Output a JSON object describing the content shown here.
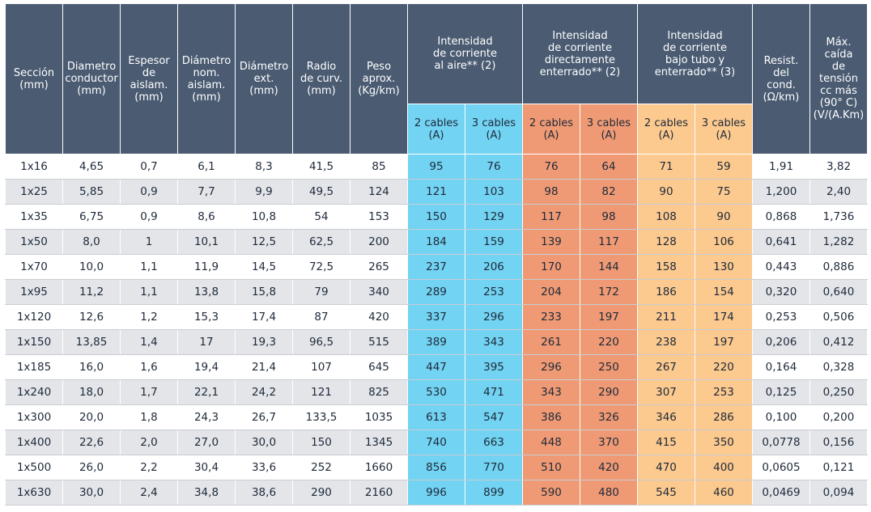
{
  "headers": {
    "seccion": "Sección\n(mm)",
    "diametro_conductor": "Diametro\nconductor\n(mm)",
    "espesor": "Espesor\nde\naislam.\n(mm)",
    "diametro_nom": "Diámetro\nnom.\naislam.\n(mm)",
    "diametro_ext": "Diámetro\next.\n(mm)",
    "radio": "Radio\nde curv.\n(mm)",
    "peso": "Peso\naprox.\n(Kg/km)",
    "int_aire": "Intensidad\nde corriente\nal aire** (2)",
    "int_enterrado": "Intensidad\nde corriente\ndirectamente\nenterrado** (2)",
    "int_tubo": "Intensidad\nde corriente\nbajo tubo y\nenterrado** (3)",
    "resist": "Resist.\ndel\ncond.\n(Ω/km)",
    "max_caida": "Máx.\ncaída\nde\ntensión\ncc más\n(90° C)\n(V/(A.Km)",
    "sub_2": "2 cables\n(A)",
    "sub_3": "3 cables\n(A)"
  },
  "rows": [
    [
      "1x16",
      "4,65",
      "0,7",
      "6,1",
      "8,3",
      "41,5",
      "85",
      "95",
      "76",
      "76",
      "64",
      "71",
      "59",
      "1,91",
      "3,82"
    ],
    [
      "1x25",
      "5,85",
      "0,9",
      "7,7",
      "9,9",
      "49,5",
      "124",
      "121",
      "103",
      "98",
      "82",
      "90",
      "75",
      "1,200",
      "2,40"
    ],
    [
      "1x35",
      "6,75",
      "0,9",
      "8,6",
      "10,8",
      "54",
      "153",
      "150",
      "129",
      "117",
      "98",
      "108",
      "90",
      "0,868",
      "1,736"
    ],
    [
      "1x50",
      "8,0",
      "1",
      "10,1",
      "12,5",
      "62,5",
      "200",
      "184",
      "159",
      "139",
      "117",
      "128",
      "106",
      "0,641",
      "1,282"
    ],
    [
      "1x70",
      "10,0",
      "1,1",
      "11,9",
      "14,5",
      "72,5",
      "265",
      "237",
      "206",
      "170",
      "144",
      "158",
      "130",
      "0,443",
      "0,886"
    ],
    [
      "1x95",
      "11,2",
      "1,1",
      "13,8",
      "15,8",
      "79",
      "340",
      "289",
      "253",
      "204",
      "172",
      "186",
      "154",
      "0,320",
      "0,640"
    ],
    [
      "1x120",
      "12,6",
      "1,2",
      "15,3",
      "17,4",
      "87",
      "420",
      "337",
      "296",
      "233",
      "197",
      "211",
      "174",
      "0,253",
      "0,506"
    ],
    [
      "1x150",
      "13,85",
      "1,4",
      "17",
      "19,3",
      "96,5",
      "515",
      "389",
      "343",
      "261",
      "220",
      "238",
      "197",
      "0,206",
      "0,412"
    ],
    [
      "1x185",
      "16,0",
      "1,6",
      "19,4",
      "21,4",
      "107",
      "645",
      "447",
      "395",
      "296",
      "250",
      "267",
      "220",
      "0,164",
      "0,328"
    ],
    [
      "1x240",
      "18,0",
      "1,7",
      "22,1",
      "24,2",
      "121",
      "825",
      "530",
      "471",
      "343",
      "290",
      "307",
      "253",
      "0,125",
      "0,250"
    ],
    [
      "1x300",
      "20,0",
      "1,8",
      "24,3",
      "26,7",
      "133,5",
      "1035",
      "613",
      "547",
      "386",
      "326",
      "346",
      "286",
      "0,100",
      "0,200"
    ],
    [
      "1x400",
      "22,6",
      "2,0",
      "27,0",
      "30,0",
      "150",
      "1345",
      "740",
      "663",
      "448",
      "370",
      "415",
      "350",
      "0,0778",
      "0,156"
    ],
    [
      "1x500",
      "26,0",
      "2,2",
      "30,4",
      "33,6",
      "252",
      "1660",
      "856",
      "770",
      "510",
      "420",
      "470",
      "400",
      "0,0605",
      "0,121"
    ],
    [
      "1x630",
      "30,0",
      "2,4",
      "34,8",
      "38,6",
      "290",
      "2160",
      "996",
      "899",
      "590",
      "480",
      "545",
      "460",
      "0,0469",
      "0,094"
    ]
  ],
  "colors": {
    "header_dark": "#4a5b72",
    "aire": "#72d3f2",
    "enterrado": "#ef9a74",
    "tubo": "#fcc98e",
    "row_stripe": "#e3e5e9"
  }
}
